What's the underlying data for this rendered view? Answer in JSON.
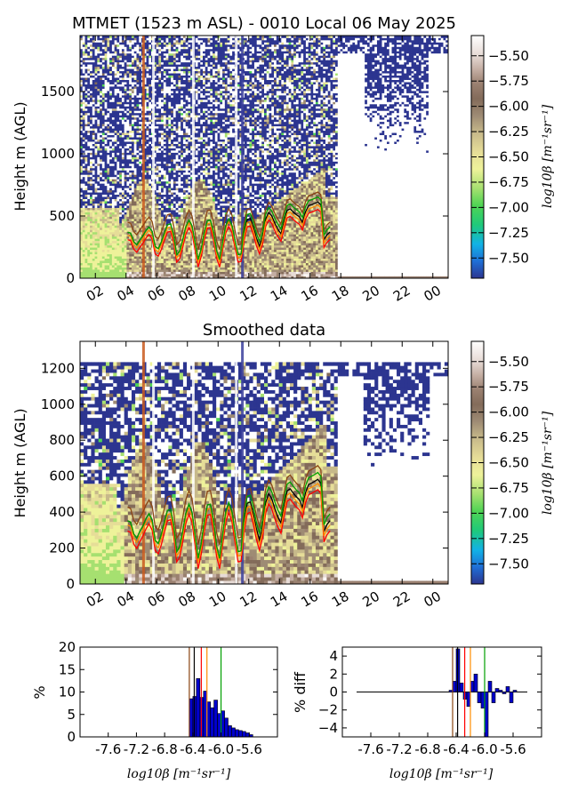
{
  "title": "MTMET (1523 m ASL) - 0010 Local 06 May 2025",
  "colormap": [
    "#2c3590",
    "#1f6fd6",
    "#12b2e6",
    "#1fc97a",
    "#4fd454",
    "#a6e070",
    "#eef29a",
    "#e6dd98",
    "#c7b98a",
    "#9e8b74",
    "#836b5a",
    "#9a8070",
    "#c4aea3",
    "#e7dbd6",
    "#fbf8f7",
    "#ffffff"
  ],
  "chart_data": [
    {
      "type": "heatmap",
      "title": "",
      "ylabel": "Height m (AGL)",
      "xlabel": "",
      "x_ticks": [
        "02",
        "04",
        "06",
        "08",
        "10",
        "12",
        "14",
        "16",
        "18",
        "20",
        "22",
        "00"
      ],
      "y_ticks": [
        0,
        500,
        1000,
        1500
      ],
      "ylim": [
        0,
        1950
      ],
      "colorbar": {
        "label": "log10β [m⁻¹sr⁻¹]",
        "ticks": [
          -5.5,
          -5.75,
          -6.0,
          -6.25,
          -6.5,
          -6.75,
          -7.0,
          -7.25,
          -7.5
        ],
        "tick_labels": [
          "−5.50",
          "−5.75",
          "−6.00",
          "−6.25",
          "−6.50",
          "−6.75",
          "−7.00",
          "−7.25",
          "−7.50"
        ],
        "range": [
          -7.7,
          -5.3
        ]
      },
      "lines": [
        {
          "color": "#000000"
        },
        {
          "color": "#ff0000"
        },
        {
          "color": "#ff8c00"
        },
        {
          "color": "#8b4513"
        },
        {
          "color": "#00a000"
        }
      ]
    },
    {
      "type": "heatmap",
      "title": "Smoothed data",
      "ylabel": "Height m (AGL)",
      "xlabel": "",
      "x_ticks": [
        "02",
        "04",
        "06",
        "08",
        "10",
        "12",
        "14",
        "16",
        "18",
        "20",
        "22",
        "00"
      ],
      "y_ticks": [
        0,
        200,
        400,
        600,
        800,
        1000,
        1200
      ],
      "ylim": [
        0,
        1350
      ],
      "colorbar": {
        "label": "log10β [m⁻¹sr⁻¹]",
        "ticks": [
          -5.5,
          -5.75,
          -6.0,
          -6.25,
          -6.5,
          -6.75,
          -7.0,
          -7.25,
          -7.5
        ],
        "tick_labels": [
          "−5.50",
          "−5.75",
          "−6.00",
          "−6.25",
          "−6.50",
          "−6.75",
          "−7.00",
          "−7.25",
          "−7.50"
        ],
        "range": [
          -7.7,
          -5.3
        ]
      }
    },
    {
      "type": "bar",
      "title": "",
      "xlabel": "log10β [m⁻¹sr⁻¹]",
      "ylabel": "%",
      "xlim": [
        -8.0,
        -5.2
      ],
      "ylim": [
        0,
        20
      ],
      "x_ticks": [
        -7.6,
        -7.2,
        -6.8,
        -6.4,
        -6.0,
        -5.6
      ],
      "x_tick_labels": [
        "-7.6",
        "-7.2",
        "-6.8",
        "-6.4",
        "-6.0",
        "-5.6"
      ],
      "y_ticks": [
        0,
        5,
        10,
        15,
        20
      ],
      "bin_width": 0.05,
      "x": [
        -6.45,
        -6.4,
        -6.35,
        -6.3,
        -6.25,
        -6.2,
        -6.15,
        -6.1,
        -6.05,
        -6.0,
        -5.95,
        -5.9,
        -5.85,
        -5.8,
        -5.75,
        -5.7,
        -5.65,
        -5.6
      ],
      "values": [
        8.5,
        9.0,
        13.0,
        8.8,
        10.2,
        7.8,
        6.5,
        8.2,
        5.2,
        5.8,
        4.2,
        2.5,
        2.0,
        1.6,
        1.4,
        1.2,
        0.9,
        0.5
      ],
      "vlines": [
        {
          "x": -6.45,
          "color": "#8b4513"
        },
        {
          "x": -6.38,
          "color": "#000000"
        },
        {
          "x": -6.28,
          "color": "#ff0000"
        },
        {
          "x": -6.2,
          "color": "#ff8c00"
        },
        {
          "x": -6.0,
          "color": "#00a000"
        }
      ]
    },
    {
      "type": "bar",
      "title": "",
      "xlabel": "log10β [m⁻¹sr⁻¹]",
      "ylabel": "% diff",
      "xlim": [
        -8.0,
        -5.2
      ],
      "ylim": [
        -5,
        5
      ],
      "x_ticks": [
        -7.6,
        -7.2,
        -6.8,
        -6.4,
        -6.0,
        -5.6
      ],
      "x_tick_labels": [
        "-7.6",
        "-7.2",
        "-6.8",
        "-6.4",
        "-6.0",
        "-5.6"
      ],
      "y_ticks": [
        -4,
        -2,
        0,
        2,
        4
      ],
      "y_tick_labels": [
        "−4",
        "−2",
        "0",
        "2",
        "4"
      ],
      "bin_width": 0.05,
      "x": [
        -6.5,
        -6.45,
        -6.4,
        -6.35,
        -6.3,
        -6.25,
        -6.2,
        -6.15,
        -6.1,
        -6.05,
        -6.0,
        -5.95,
        -5.9,
        -5.85,
        -5.8,
        -5.75,
        -5.7,
        -5.65,
        -5.6
      ],
      "values": [
        0.2,
        1.2,
        4.8,
        1.0,
        -0.8,
        -1.6,
        1.2,
        2.0,
        -1.2,
        -1.8,
        -5.0,
        1.2,
        -1.2,
        0.4,
        0.2,
        -0.2,
        0.6,
        -1.2,
        0.2
      ],
      "vlines": [
        {
          "x": -6.45,
          "color": "#8b4513"
        },
        {
          "x": -6.38,
          "color": "#000000"
        },
        {
          "x": -6.28,
          "color": "#ff0000"
        },
        {
          "x": -6.2,
          "color": "#ff8c00"
        },
        {
          "x": -6.0,
          "color": "#00a000"
        }
      ]
    }
  ]
}
